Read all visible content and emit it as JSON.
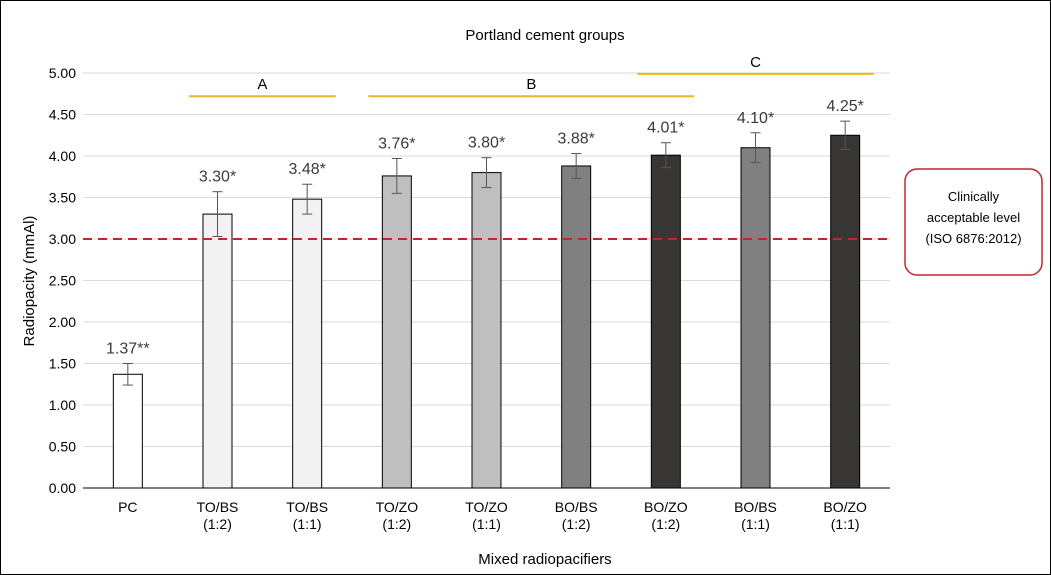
{
  "chart_data": {
    "type": "bar",
    "title": "Portland cement groups",
    "xlabel": "Mixed radiopacifiers",
    "ylabel": "Radiopacity (mmAl)",
    "ylim": [
      0,
      5
    ],
    "yticks": [
      "0.00",
      "0.50",
      "1.00",
      "1.50",
      "2.00",
      "2.50",
      "3.00",
      "3.50",
      "4.00",
      "4.50",
      "5.00"
    ],
    "grid": true,
    "categories": [
      [
        "PC"
      ],
      [
        "TO/BS",
        "(1:2)"
      ],
      [
        "TO/BS",
        "(1:1)"
      ],
      [
        "TO/ZO",
        "(1:2)"
      ],
      [
        "TO/ZO",
        "(1:1)"
      ],
      [
        "BO/BS",
        "(1:2)"
      ],
      [
        "BO/ZO",
        "(1:2)"
      ],
      [
        "BO/BS",
        "(1:1)"
      ],
      [
        "BO/ZO",
        "(1:1)"
      ]
    ],
    "values": [
      1.37,
      3.3,
      3.48,
      3.76,
      3.8,
      3.88,
      4.01,
      4.1,
      4.25
    ],
    "error": [
      0.13,
      0.27,
      0.18,
      0.21,
      0.18,
      0.15,
      0.15,
      0.18,
      0.17
    ],
    "data_labels": [
      "1.37**",
      "3.30*",
      "3.48*",
      "3.76*",
      "3.80*",
      "3.88*",
      "4.01*",
      "4.10*",
      "4.25*"
    ],
    "bar_colors": [
      "#ffffff",
      "#f2f2f2",
      "#f2f2f2",
      "#bfbfbf",
      "#bfbfbf",
      "#808080",
      "#383535",
      "#808080",
      "#383535"
    ],
    "reference_line": {
      "value": 3.0,
      "color": "#c0262d",
      "label": [
        "Clinically",
        "acceptable level",
        "(ISO 6876:2012)"
      ]
    },
    "groups": [
      {
        "label": "A",
        "from": 1,
        "to": 2,
        "level": 4.72
      },
      {
        "label": "B",
        "from": 3,
        "to": 6,
        "level": 4.72
      },
      {
        "label": "C",
        "from": 6,
        "to": 8,
        "level": 4.99
      }
    ],
    "group_color": "#f0b323",
    "gridline_color": "#d9d9d9"
  }
}
